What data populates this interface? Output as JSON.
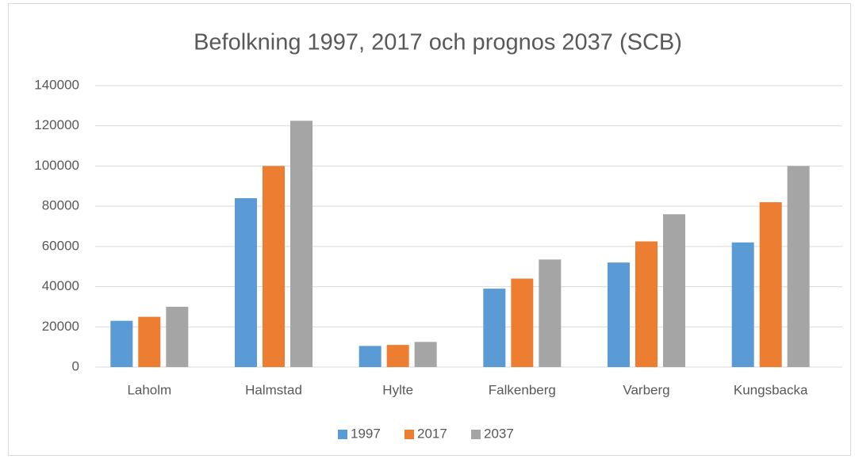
{
  "chart_data": {
    "type": "bar",
    "title": "Befolkning 1997, 2017 och prognos 2037 (SCB)",
    "categories": [
      "Laholm",
      "Halmstad",
      "Hylte",
      "Falkenberg",
      "Varberg",
      "Kungsbacka"
    ],
    "series": [
      {
        "name": "1997",
        "color": "#5b9bd5",
        "values": [
          23000,
          84000,
          10500,
          39000,
          52000,
          62000
        ]
      },
      {
        "name": "2017",
        "color": "#ed7d31",
        "values": [
          25000,
          100000,
          11000,
          44000,
          62500,
          82000
        ]
      },
      {
        "name": "2037",
        "color": "#a5a5a5",
        "values": [
          30000,
          122500,
          12500,
          53500,
          76000,
          100000
        ]
      }
    ],
    "ylim": [
      0,
      140000
    ],
    "yticks": [
      0,
      20000,
      40000,
      60000,
      80000,
      100000,
      120000,
      140000
    ],
    "grid": true,
    "legend": "bottom"
  }
}
